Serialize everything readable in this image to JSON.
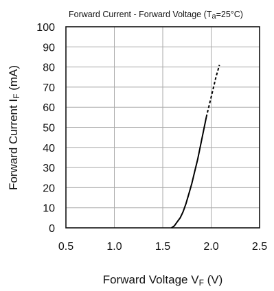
{
  "chart_data": {
    "type": "line",
    "title": "Forward Current - Forward Voltage",
    "title_condition": {
      "main": "T",
      "sub": "a",
      "rest": "=25°C"
    },
    "xlabel": {
      "main": "Forward Voltage  V",
      "sub": "F",
      "rest": " (V)"
    },
    "ylabel": {
      "main": "Forward Current  I",
      "sub": "F",
      "rest": "  (mA)"
    },
    "xlim": [
      0.5,
      2.5
    ],
    "ylim": [
      0,
      100
    ],
    "x_ticks": [
      "0.5",
      "1.0",
      "1.5",
      "2.0",
      "2.5"
    ],
    "y_ticks": [
      "0",
      "10",
      "20",
      "30",
      "40",
      "50",
      "60",
      "70",
      "80",
      "90",
      "100"
    ],
    "grid": true,
    "series": [
      {
        "style": "solid",
        "x": [
          1.59,
          1.62,
          1.65,
          1.68,
          1.71,
          1.74,
          1.77,
          1.8,
          1.83,
          1.86,
          1.89,
          1.92,
          1.95
        ],
        "y": [
          0,
          1,
          3,
          5,
          8,
          12,
          17,
          22,
          28,
          34,
          41,
          48,
          55
        ]
      },
      {
        "style": "dashed",
        "x": [
          1.95,
          2.0,
          2.05,
          2.085
        ],
        "y": [
          55,
          65,
          75,
          81
        ]
      }
    ]
  }
}
